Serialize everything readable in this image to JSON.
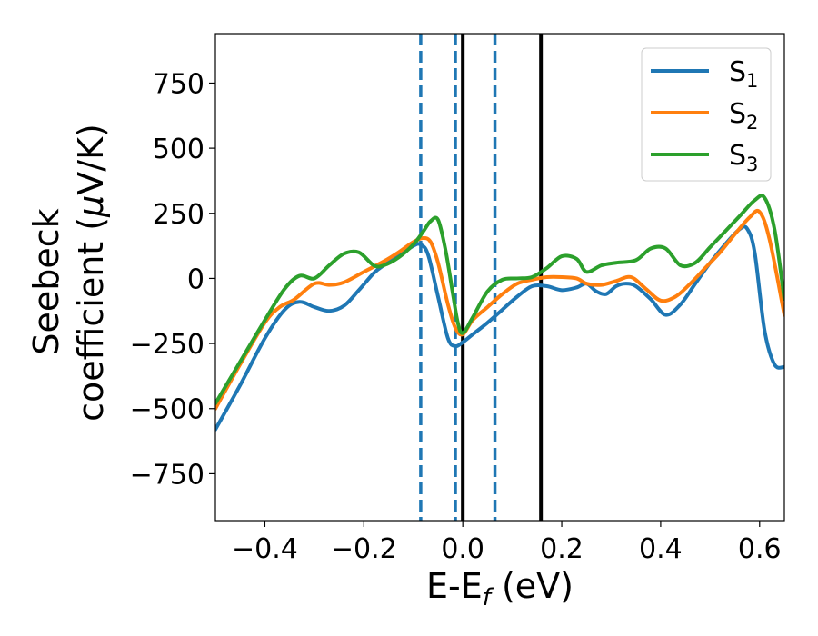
{
  "chart_data": {
    "type": "line",
    "xlabel": "E-E",
    "xlabel_sub": "f",
    "xlabel_unit": " (eV)",
    "ylabel_line1": "Seebeck",
    "ylabel_line2_prefix": "coefficient  (",
    "ylabel_mu": "μ",
    "ylabel_line2_suffix": "V/K)",
    "xlim": [
      -0.5,
      0.65
    ],
    "ylim": [
      -930,
      940
    ],
    "x_ticks": [
      -0.4,
      -0.2,
      0.0,
      0.2,
      0.4,
      0.6
    ],
    "x_tick_labels": [
      "−0.4",
      "−0.2",
      "0.0",
      "0.2",
      "0.4",
      "0.6"
    ],
    "y_ticks": [
      -750,
      -500,
      -250,
      0,
      250,
      500,
      750
    ],
    "y_tick_labels": [
      "−750",
      "−500",
      "−250",
      "0",
      "250",
      "500",
      "750"
    ],
    "grid": false,
    "legend_position": "top-right",
    "series": [
      {
        "name": "S",
        "subscript": "1",
        "color": "#1f77b4",
        "x": [
          -0.5,
          -0.45,
          -0.4,
          -0.36,
          -0.33,
          -0.3,
          -0.27,
          -0.24,
          -0.21,
          -0.18,
          -0.16,
          -0.13,
          -0.1,
          -0.085,
          -0.07,
          -0.05,
          -0.03,
          -0.015,
          0.0,
          0.02,
          0.05,
          0.08,
          0.11,
          0.14,
          0.17,
          0.2,
          0.23,
          0.25,
          0.27,
          0.29,
          0.31,
          0.33,
          0.35,
          0.38,
          0.41,
          0.44,
          0.47,
          0.5,
          0.53,
          0.56,
          0.575,
          0.59,
          0.61,
          0.63,
          0.65
        ],
        "y": [
          -580,
          -410,
          -230,
          -120,
          -90,
          -110,
          -125,
          -105,
          -45,
          20,
          50,
          85,
          125,
          130,
          90,
          -70,
          -230,
          -260,
          -245,
          -215,
          -170,
          -120,
          -70,
          -30,
          -30,
          -45,
          -35,
          -20,
          -50,
          -60,
          -30,
          -20,
          -30,
          -80,
          -140,
          -100,
          -20,
          60,
          130,
          190,
          190,
          100,
          -200,
          -330,
          -340
        ]
      },
      {
        "name": "S",
        "subscript": "2",
        "color": "#ff7f0e",
        "x": [
          -0.5,
          -0.45,
          -0.4,
          -0.37,
          -0.34,
          -0.3,
          -0.27,
          -0.24,
          -0.2,
          -0.16,
          -0.13,
          -0.1,
          -0.08,
          -0.065,
          -0.05,
          -0.03,
          -0.015,
          0.0,
          0.02,
          0.05,
          0.08,
          0.11,
          0.14,
          0.17,
          0.2,
          0.23,
          0.25,
          0.28,
          0.31,
          0.34,
          0.37,
          0.4,
          0.43,
          0.46,
          0.49,
          0.52,
          0.55,
          0.58,
          0.6,
          0.62,
          0.65
        ],
        "y": [
          -500,
          -330,
          -170,
          -110,
          -80,
          -20,
          -25,
          -15,
          25,
          65,
          100,
          140,
          155,
          140,
          60,
          -100,
          -190,
          -215,
          -160,
          -110,
          -60,
          -20,
          -5,
          5,
          5,
          0,
          -20,
          -25,
          -10,
          5,
          -40,
          -85,
          -70,
          -20,
          40,
          100,
          170,
          235,
          255,
          150,
          -140
        ]
      },
      {
        "name": "S",
        "subscript": "3",
        "color": "#2ca02c",
        "x": [
          -0.5,
          -0.45,
          -0.4,
          -0.36,
          -0.33,
          -0.3,
          -0.27,
          -0.24,
          -0.21,
          -0.18,
          -0.16,
          -0.13,
          -0.1,
          -0.08,
          -0.065,
          -0.05,
          -0.035,
          -0.02,
          -0.01,
          0.0,
          0.02,
          0.05,
          0.08,
          0.11,
          0.14,
          0.17,
          0.2,
          0.23,
          0.25,
          0.28,
          0.31,
          0.35,
          0.38,
          0.41,
          0.44,
          0.47,
          0.5,
          0.53,
          0.56,
          0.59,
          0.61,
          0.63,
          0.65
        ],
        "y": [
          -480,
          -320,
          -160,
          -40,
          10,
          0,
          50,
          95,
          100,
          50,
          50,
          80,
          130,
          180,
          220,
          225,
          110,
          -60,
          -170,
          -210,
          -150,
          -50,
          -5,
          0,
          5,
          40,
          85,
          75,
          25,
          50,
          60,
          70,
          115,
          115,
          50,
          60,
          120,
          180,
          240,
          300,
          310,
          190,
          -80
        ]
      }
    ],
    "vertical_lines": [
      {
        "x": -0.085,
        "style": "dashed",
        "color": "#1f77b4"
      },
      {
        "x": -0.015,
        "style": "dashed",
        "color": "#1f77b4"
      },
      {
        "x": 0.065,
        "style": "dashed",
        "color": "#1f77b4"
      },
      {
        "x": 0.0,
        "style": "solid",
        "color": "#000000"
      },
      {
        "x": 0.158,
        "style": "solid",
        "color": "#000000"
      }
    ]
  }
}
